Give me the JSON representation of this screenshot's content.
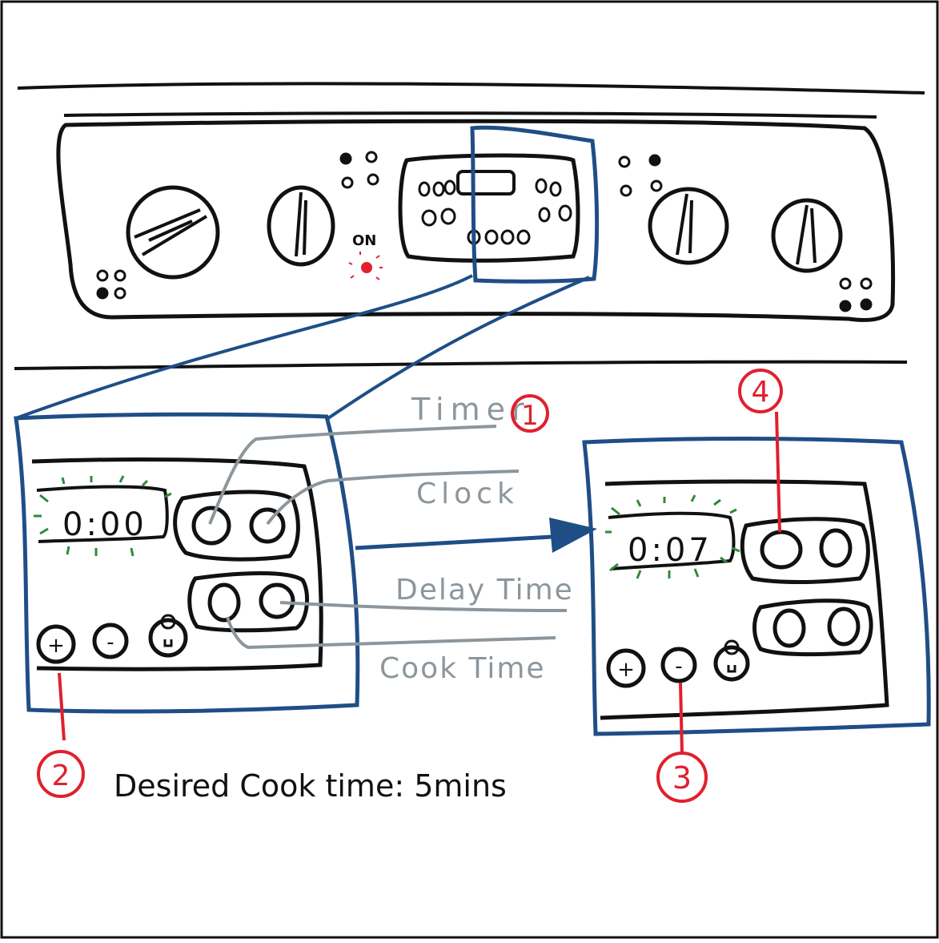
{
  "colors": {
    "ink": "#111111",
    "blue": "#1f4e86",
    "red": "#e0202e",
    "grey": "#8c969c",
    "green": "#2f8a3a"
  },
  "stove_panel": {
    "on_label": "ON"
  },
  "before_display": {
    "time": "0:00",
    "plus_label": "+",
    "minus_label": "-",
    "light_icon": "lightbulb-icon"
  },
  "after_display": {
    "time": "0:07",
    "plus_label": "+",
    "minus_label": "-",
    "light_icon": "lightbulb-icon"
  },
  "labels": {
    "timer": "Timer",
    "clock": "Clock",
    "delay_time": "Delay Time",
    "cook_time": "Cook Time"
  },
  "steps": {
    "step1": "1",
    "step2": "2",
    "step3": "3",
    "step4": "4"
  },
  "note": {
    "text": "Desired Cook time: 5mins"
  }
}
